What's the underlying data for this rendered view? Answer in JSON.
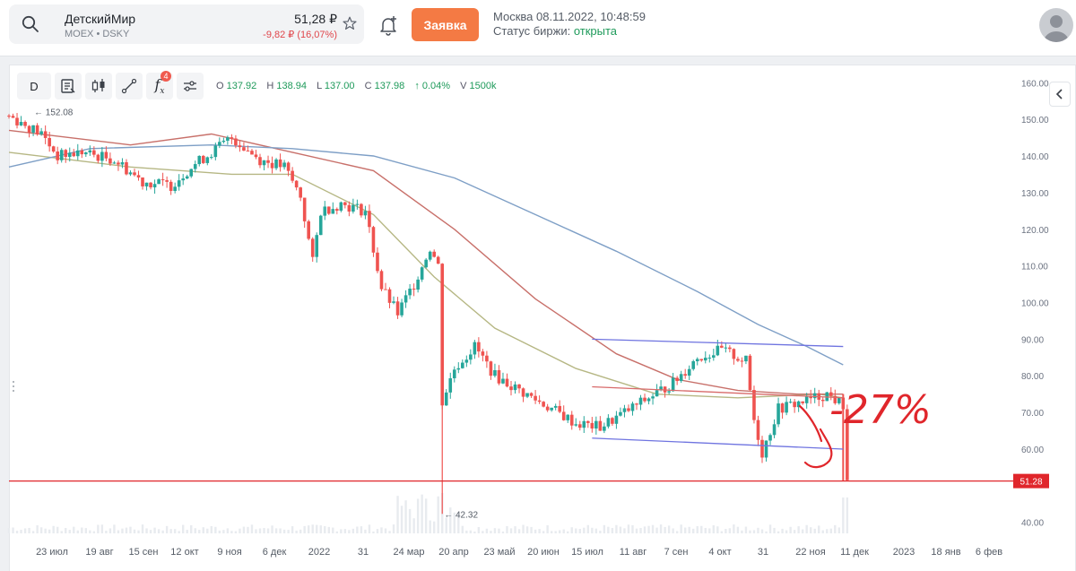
{
  "header": {
    "ticker_name": "ДетскийМир",
    "ticker_exchange": "MOEX • DSKY",
    "price": "51,28 ₽",
    "change": "-9,82 ₽ (16,07%)",
    "order_button": "Заявка",
    "datetime": "Москва 08.11.2022, 10:48:59",
    "status_label": "Статус биржи: ",
    "status_value": "открыта"
  },
  "toolbar": {
    "interval": "D",
    "indicators_count": "4",
    "ohlc": {
      "o_label": "O",
      "o_value": "137.92",
      "h_label": "H",
      "h_value": "138.94",
      "l_label": "L",
      "l_value": "137.00",
      "c_label": "C",
      "c_value": "137.98",
      "change": "↑ 0.04%",
      "v_label": "V",
      "v_value": "1500k"
    }
  },
  "colors": {
    "up": "#26a69a",
    "down": "#ef5350",
    "accent": "#f47a44",
    "ma_fast": "#b6b784",
    "ma_mid": "#c8706a",
    "ma_slow": "#7e9fc6",
    "channel": "#6f74e0",
    "annotation": "#e0262b"
  },
  "icons": [
    "search-icon",
    "star-icon",
    "bell-plus-icon",
    "avatar-icon",
    "news-icon",
    "candles-icon",
    "draw-icon",
    "fx-icon",
    "settings-icon",
    "chevron-left-icon"
  ],
  "chart_data": {
    "type": "candlestick",
    "y_axis_ticks": [
      "160.00",
      "150.00",
      "140.00",
      "130.00",
      "120.00",
      "110.00",
      "100.00",
      "90.00",
      "80.00",
      "70.00",
      "60.00",
      "40.00"
    ],
    "x_axis_ticks": [
      "23 июл",
      "19 авг",
      "15 сен",
      "12 окт",
      "9 ноя",
      "6 дек",
      "2022",
      "31",
      "24 мар",
      "20 апр",
      "23 май",
      "20 июн",
      "15 июл",
      "11 авг",
      "7 сен",
      "4 окт",
      "31",
      "22 ноя",
      "11 дек",
      "2023",
      "18 янв",
      "6 фев"
    ],
    "ylim": [
      37,
      163
    ],
    "last_price_label": "51.28",
    "high_marker": "152.08",
    "low_marker": "42.32",
    "annotation": "-27%",
    "price_path": [
      [
        0,
        151
      ],
      [
        8,
        146
      ],
      [
        12,
        140
      ],
      [
        18,
        141
      ],
      [
        26,
        139
      ],
      [
        33,
        133
      ],
      [
        40,
        132
      ],
      [
        45,
        137
      ],
      [
        50,
        141
      ],
      [
        55,
        145
      ],
      [
        62,
        139
      ],
      [
        68,
        137
      ],
      [
        72,
        129
      ],
      [
        75,
        111
      ],
      [
        77,
        125
      ],
      [
        82,
        127
      ],
      [
        88,
        125
      ],
      [
        92,
        104
      ],
      [
        96,
        97
      ],
      [
        100,
        105
      ],
      [
        104,
        115
      ],
      [
        106,
        110
      ],
      [
        107,
        73
      ],
      [
        110,
        82
      ],
      [
        115,
        88
      ],
      [
        120,
        80
      ],
      [
        126,
        76
      ],
      [
        134,
        71
      ],
      [
        140,
        67
      ],
      [
        146,
        66
      ],
      [
        152,
        70
      ],
      [
        158,
        74
      ],
      [
        164,
        78
      ],
      [
        170,
        85
      ],
      [
        176,
        87
      ],
      [
        182,
        84
      ],
      [
        184,
        68
      ],
      [
        186,
        59
      ],
      [
        190,
        71
      ],
      [
        196,
        73
      ],
      [
        202,
        75
      ],
      [
        206,
        72
      ],
      [
        207,
        52
      ]
    ],
    "series": [
      {
        "name": "",
        "values": [
          [
            0,
            141
          ],
          [
            30,
            137
          ],
          [
            55,
            135
          ],
          [
            70,
            135
          ],
          [
            90,
            124
          ],
          [
            105,
            107
          ],
          [
            120,
            93
          ],
          [
            140,
            82
          ],
          [
            160,
            75
          ],
          [
            180,
            74
          ],
          [
            200,
            75
          ],
          [
            206,
            74
          ]
        ]
      },
      {
        "name": "",
        "values": [
          [
            0,
            147
          ],
          [
            30,
            143
          ],
          [
            50,
            146
          ],
          [
            70,
            141
          ],
          [
            90,
            136
          ],
          [
            110,
            120
          ],
          [
            130,
            101
          ],
          [
            150,
            86
          ],
          [
            165,
            79
          ],
          [
            180,
            76
          ],
          [
            195,
            75
          ],
          [
            206,
            75
          ]
        ]
      },
      {
        "name": "",
        "values": [
          [
            0,
            137
          ],
          [
            20,
            142
          ],
          [
            50,
            143
          ],
          [
            70,
            142
          ],
          [
            90,
            140
          ],
          [
            110,
            134
          ],
          [
            130,
            124
          ],
          [
            150,
            114
          ],
          [
            170,
            103
          ],
          [
            185,
            94
          ],
          [
            197,
            88
          ],
          [
            206,
            83
          ]
        ]
      }
    ],
    "channel": [
      {
        "from": [
          144,
          90
        ],
        "to": [
          206,
          88
        ]
      },
      {
        "from": [
          144,
          63
        ],
        "to": [
          206,
          60
        ]
      },
      {
        "from": [
          144,
          77
        ],
        "to": [
          206,
          74
        ]
      }
    ]
  }
}
